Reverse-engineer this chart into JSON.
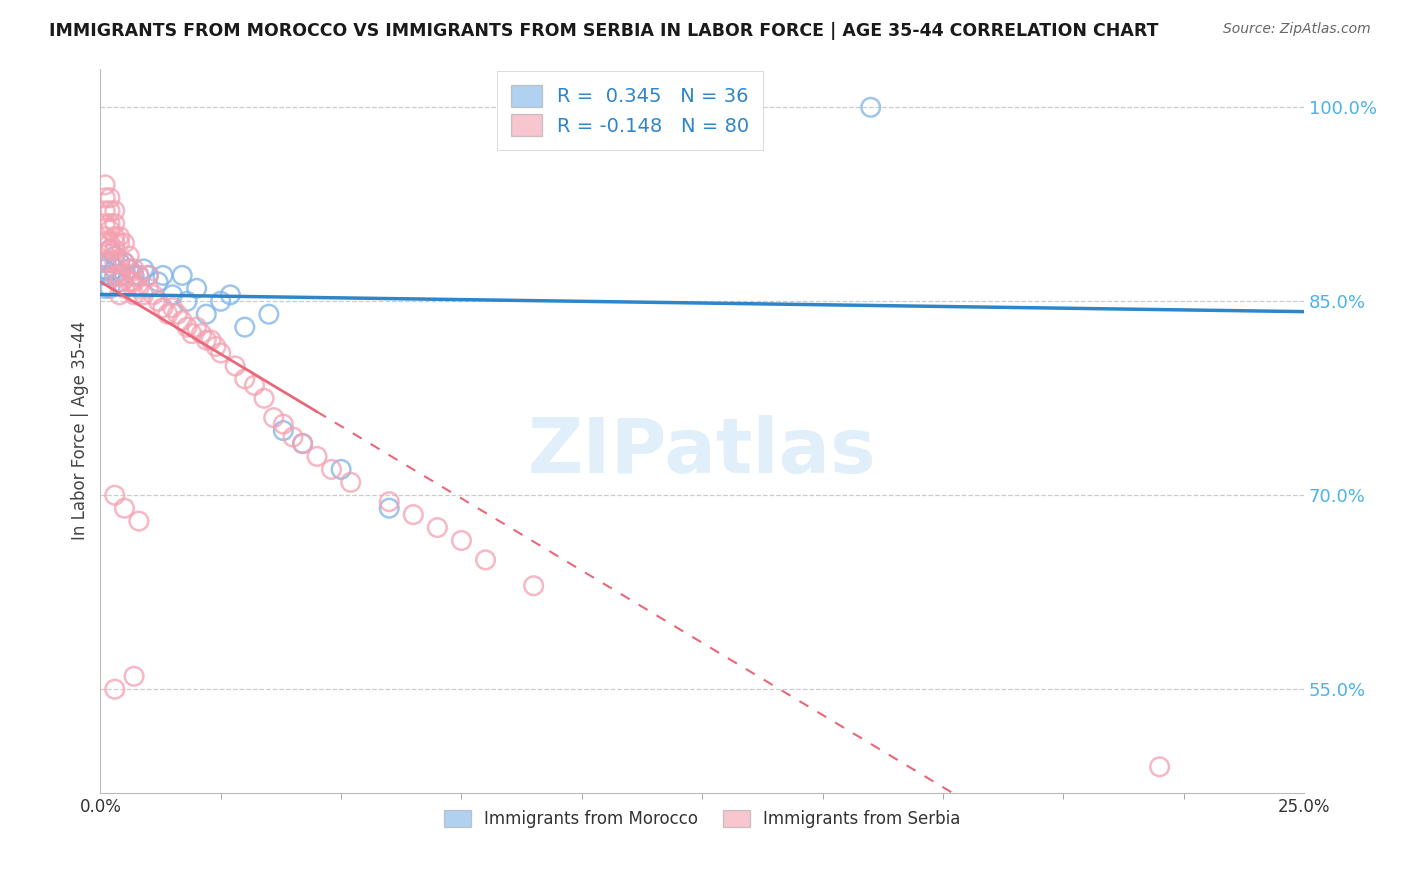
{
  "title": "IMMIGRANTS FROM MOROCCO VS IMMIGRANTS FROM SERBIA IN LABOR FORCE | AGE 35-44 CORRELATION CHART",
  "source": "Source: ZipAtlas.com",
  "ylabel": "In Labor Force | Age 35-44",
  "x_range": [
    0.0,
    0.25
  ],
  "y_range": [
    0.47,
    1.03
  ],
  "y_ticks": [
    0.55,
    0.7,
    0.85,
    1.0
  ],
  "y_tick_labels": [
    "55.0%",
    "70.0%",
    "85.0%",
    "100.0%"
  ],
  "x_ticks": [
    0.0,
    0.25
  ],
  "x_tick_labels": [
    "0.0%",
    "25.0%"
  ],
  "morocco_color": "#7eb3e8",
  "serbia_color": "#f4a0b0",
  "morocco_R": 0.345,
  "morocco_N": 36,
  "serbia_R": -0.148,
  "serbia_N": 80,
  "morocco_line_color": "#2e86c8",
  "serbia_line_color": "#e8687a",
  "watermark_text": "ZIPatlas",
  "legend_label_morocco": "Immigrants from Morocco",
  "legend_label_serbia": "Immigrants from Serbia",
  "morocco_x": [
    0.001,
    0.001,
    0.001,
    0.001,
    0.002,
    0.002,
    0.002,
    0.002,
    0.003,
    0.003,
    0.003,
    0.004,
    0.004,
    0.005,
    0.005,
    0.006,
    0.007,
    0.008,
    0.009,
    0.01,
    0.012,
    0.013,
    0.015,
    0.017,
    0.018,
    0.02,
    0.022,
    0.025,
    0.027,
    0.03,
    0.035,
    0.038,
    0.042,
    0.05,
    0.06,
    0.16
  ],
  "morocco_y": [
    0.87,
    0.88,
    0.875,
    0.86,
    0.89,
    0.88,
    0.87,
    0.86,
    0.885,
    0.875,
    0.87,
    0.88,
    0.865,
    0.88,
    0.87,
    0.875,
    0.87,
    0.87,
    0.875,
    0.87,
    0.865,
    0.87,
    0.855,
    0.87,
    0.85,
    0.86,
    0.84,
    0.85,
    0.855,
    0.83,
    0.84,
    0.75,
    0.74,
    0.72,
    0.69,
    1.0
  ],
  "serbia_x": [
    0.001,
    0.001,
    0.001,
    0.001,
    0.001,
    0.001,
    0.001,
    0.002,
    0.002,
    0.002,
    0.002,
    0.002,
    0.002,
    0.002,
    0.003,
    0.003,
    0.003,
    0.003,
    0.003,
    0.003,
    0.003,
    0.004,
    0.004,
    0.004,
    0.004,
    0.004,
    0.004,
    0.005,
    0.005,
    0.005,
    0.005,
    0.006,
    0.006,
    0.006,
    0.007,
    0.007,
    0.007,
    0.008,
    0.008,
    0.009,
    0.01,
    0.01,
    0.011,
    0.012,
    0.013,
    0.014,
    0.015,
    0.016,
    0.017,
    0.018,
    0.019,
    0.02,
    0.021,
    0.022,
    0.023,
    0.024,
    0.025,
    0.028,
    0.03,
    0.032,
    0.034,
    0.036,
    0.038,
    0.04,
    0.042,
    0.045,
    0.048,
    0.052,
    0.06,
    0.065,
    0.07,
    0.075,
    0.08,
    0.09,
    0.003,
    0.005,
    0.008,
    0.003,
    0.007,
    0.22
  ],
  "serbia_y": [
    0.94,
    0.93,
    0.92,
    0.91,
    0.9,
    0.895,
    0.88,
    0.93,
    0.92,
    0.91,
    0.905,
    0.895,
    0.89,
    0.88,
    0.92,
    0.91,
    0.9,
    0.895,
    0.89,
    0.88,
    0.87,
    0.9,
    0.895,
    0.88,
    0.87,
    0.865,
    0.855,
    0.895,
    0.88,
    0.87,
    0.86,
    0.885,
    0.875,
    0.865,
    0.875,
    0.865,
    0.855,
    0.87,
    0.86,
    0.855,
    0.87,
    0.86,
    0.855,
    0.85,
    0.845,
    0.84,
    0.845,
    0.84,
    0.835,
    0.83,
    0.825,
    0.83,
    0.825,
    0.82,
    0.82,
    0.815,
    0.81,
    0.8,
    0.79,
    0.785,
    0.775,
    0.76,
    0.755,
    0.745,
    0.74,
    0.73,
    0.72,
    0.71,
    0.695,
    0.685,
    0.675,
    0.665,
    0.65,
    0.63,
    0.7,
    0.69,
    0.68,
    0.55,
    0.56,
    0.49
  ]
}
